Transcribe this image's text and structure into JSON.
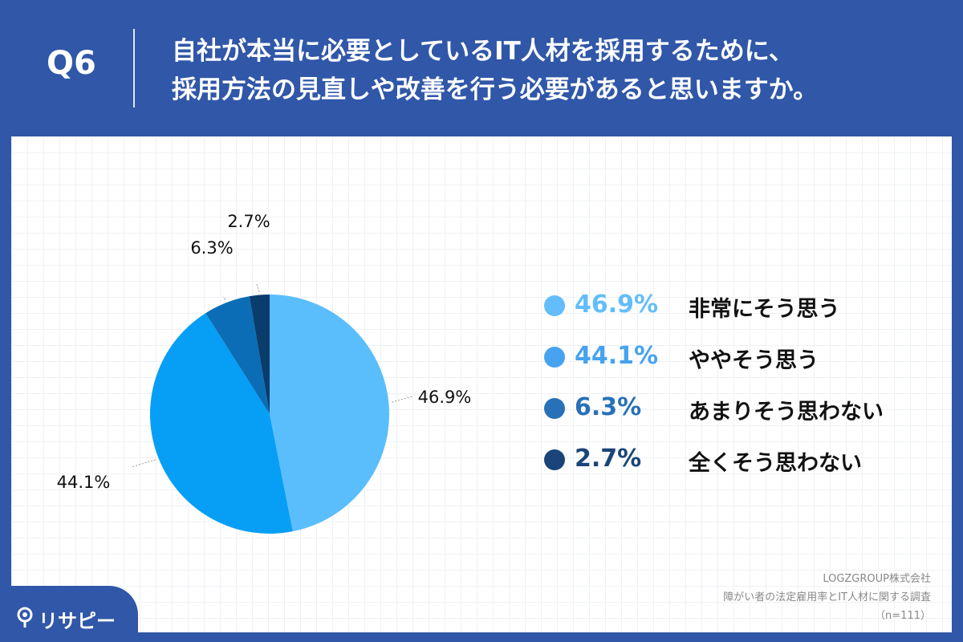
{
  "header": {
    "question_number": "Q6",
    "title_line1": "自社が本当に必要としているIT人材を採用するために、",
    "title_line2": "採用方法の見直しや改善を行う必要があると思いますか。"
  },
  "legend": [
    {
      "pct": "46.9%",
      "label": "非常にそう思う",
      "color": "#62bdfa"
    },
    {
      "pct": "44.1%",
      "label": "ややそう思う",
      "color": "#47a3f0"
    },
    {
      "pct": "6.3%",
      "label": "あまりそう思わない",
      "color": "#2870b8"
    },
    {
      "pct": "2.7%",
      "label": "全くそう思わない",
      "color": "#1b4478"
    }
  ],
  "source": {
    "company": "LOGZGROUP株式会社",
    "survey": "障がい者の法定雇用率とIT人材に関する調査",
    "sample": "（n=111）"
  },
  "logo": {
    "text": "リサピー",
    "icon": "map-pin-icon"
  },
  "chart_data": {
    "type": "pie",
    "categories": [
      "非常にそう思う",
      "ややそう思う",
      "あまりそう思わない",
      "全くそう思わない"
    ],
    "values": [
      46.9,
      44.1,
      6.3,
      2.7
    ],
    "labels": [
      "46.9%",
      "44.1%",
      "6.3%",
      "2.7%"
    ],
    "colors": [
      "#5bbefc",
      "#069ff5",
      "#0b6db5",
      "#0a3c6c"
    ],
    "legend_position": "right"
  }
}
